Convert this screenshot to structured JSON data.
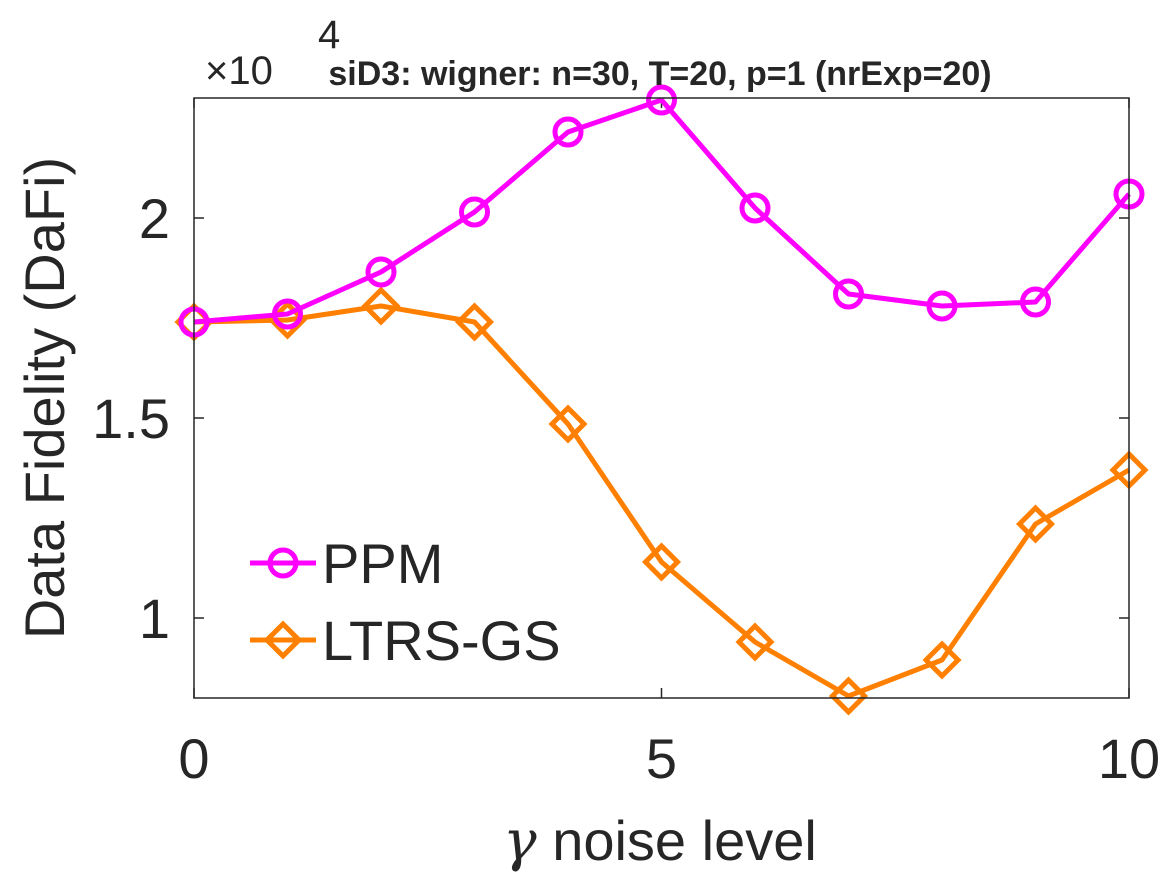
{
  "chart_data": {
    "type": "line",
    "title": "siD3: wigner: n=30, T=20, p=1 (nrExp=20)",
    "xlabel_symbol": "γ",
    "xlabel_text": " noise level",
    "ylabel": "Data Fidelity (DaFi)",
    "y_exponent_label": "×10",
    "y_exponent_power": "4",
    "xlim": [
      0,
      10
    ],
    "ylim": [
      8000,
      23000
    ],
    "xticks": [
      0,
      5,
      10
    ],
    "xtick_labels": [
      "0",
      "5",
      "10"
    ],
    "yticks": [
      10000,
      15000,
      20000
    ],
    "ytick_labels": [
      "1",
      "1.5",
      "2"
    ],
    "grid": false,
    "legend_position": "bottom-left",
    "x": [
      0,
      1,
      2,
      3,
      4,
      5,
      6,
      7,
      8,
      9,
      10
    ],
    "series": [
      {
        "name": "PPM",
        "color": "#ff00ff",
        "marker": "circle",
        "values": [
          17400,
          17600,
          18650,
          20150,
          22150,
          22950,
          20250,
          18100,
          17800,
          17900,
          20600
        ]
      },
      {
        "name": "LTRS-GS",
        "color": "#ff8000",
        "marker": "diamond",
        "values": [
          17400,
          17450,
          17800,
          17400,
          14850,
          11400,
          9400,
          8050,
          8950,
          12350,
          13700
        ]
      }
    ]
  }
}
